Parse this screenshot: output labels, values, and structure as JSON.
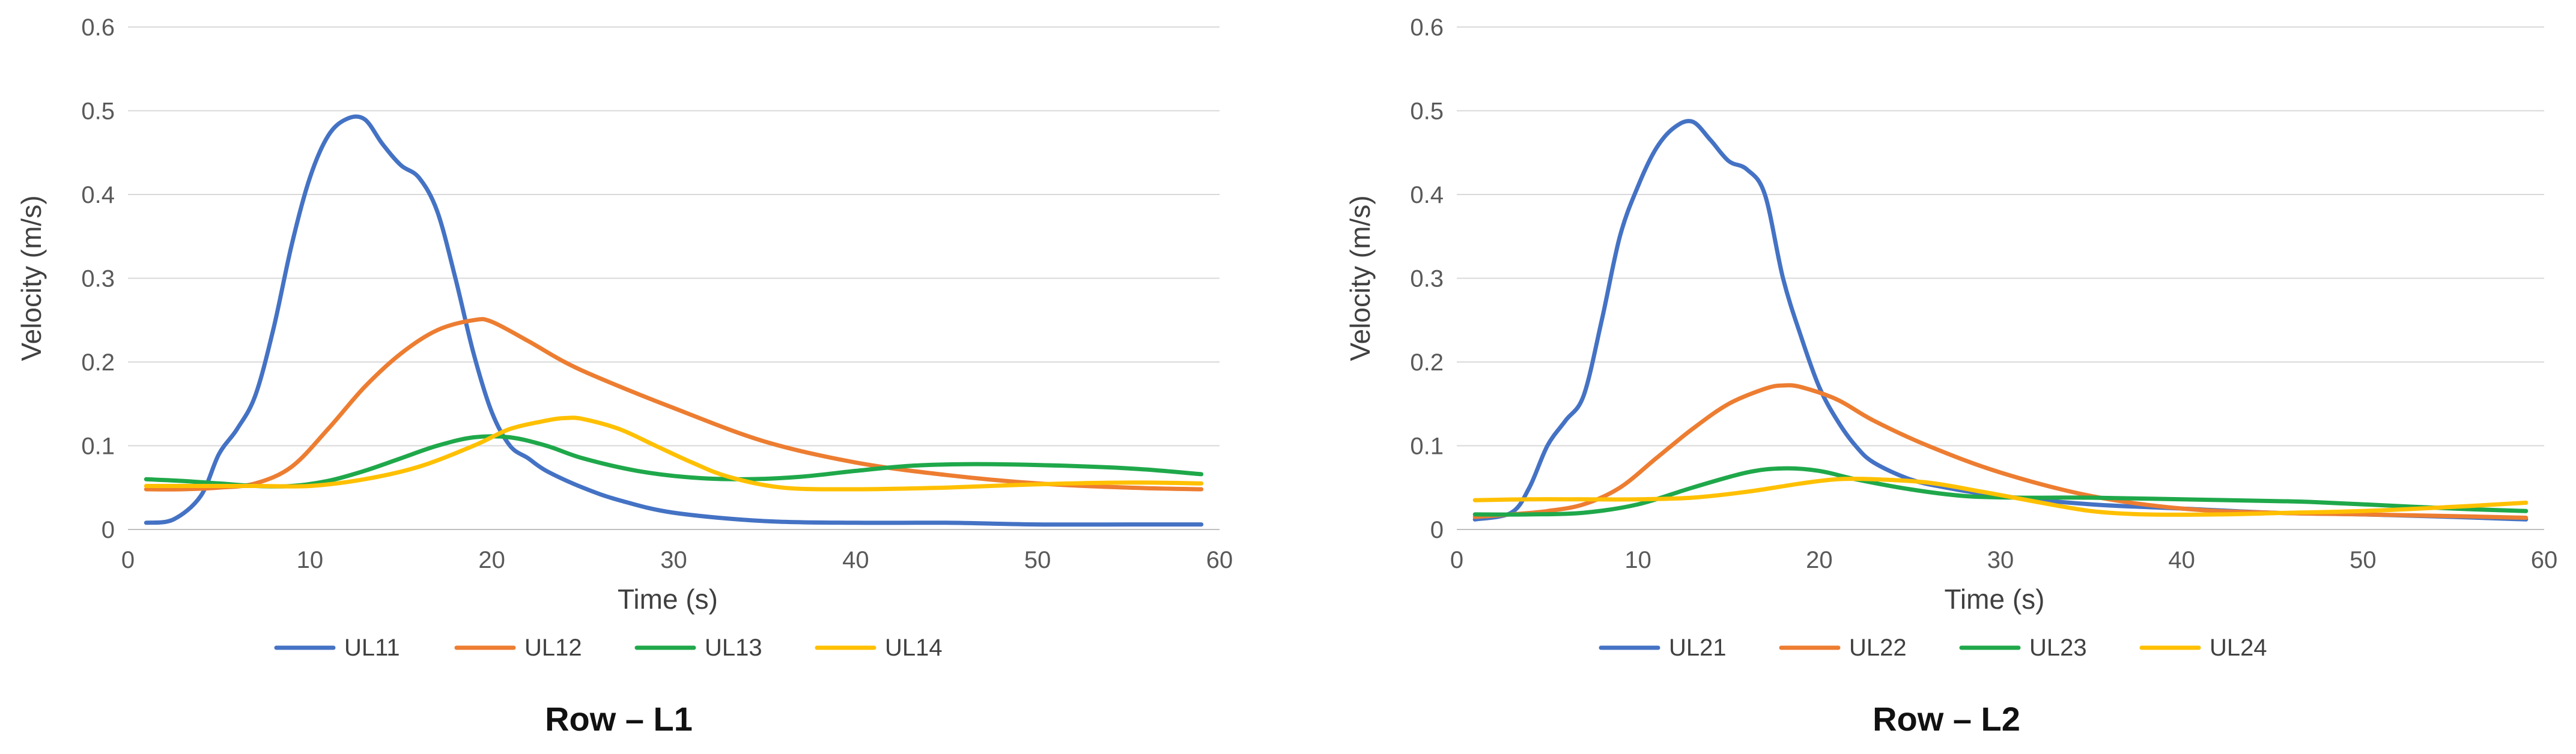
{
  "colors": {
    "blue": "#4472C4",
    "orange": "#ED7D31",
    "green": "#1FA84A",
    "yellow": "#FFC000",
    "grid": "#D9D9D9"
  },
  "chart_data": [
    {
      "type": "line",
      "caption": "Row – L1",
      "xlabel": "Time (s)",
      "ylabel": "Velocity (m/s)",
      "xlim": [
        0,
        60
      ],
      "ylim": [
        0,
        0.6
      ],
      "xticks": [
        0,
        10,
        20,
        30,
        40,
        50,
        60
      ],
      "yticks": [
        0,
        0.1,
        0.2,
        0.3,
        0.4,
        0.5,
        0.6
      ],
      "grid": true,
      "legend": "bottom",
      "series": [
        {
          "name": "UL11",
          "color": "#4472C4",
          "x": [
            1,
            2.5,
            4,
            5,
            6,
            7,
            8,
            9,
            10,
            11,
            12,
            13,
            14,
            15,
            16,
            17,
            18,
            19,
            20,
            21,
            22,
            23,
            25,
            27,
            30,
            35,
            40,
            45,
            50,
            55,
            59
          ],
          "y": [
            0.008,
            0.012,
            0.04,
            0.09,
            0.12,
            0.16,
            0.24,
            0.34,
            0.42,
            0.47,
            0.49,
            0.49,
            0.46,
            0.435,
            0.42,
            0.38,
            0.3,
            0.21,
            0.14,
            0.1,
            0.085,
            0.07,
            0.05,
            0.035,
            0.02,
            0.01,
            0.008,
            0.008,
            0.006,
            0.006,
            0.006
          ]
        },
        {
          "name": "UL12",
          "color": "#ED7D31",
          "x": [
            1,
            3,
            5,
            7,
            9,
            11,
            13,
            15,
            17,
            19,
            20,
            22,
            24,
            26,
            30,
            35,
            40,
            45,
            50,
            55,
            59
          ],
          "y": [
            0.048,
            0.048,
            0.05,
            0.055,
            0.075,
            0.12,
            0.17,
            0.21,
            0.238,
            0.25,
            0.248,
            0.225,
            0.2,
            0.18,
            0.145,
            0.105,
            0.08,
            0.065,
            0.055,
            0.05,
            0.048
          ]
        },
        {
          "name": "UL13",
          "color": "#1FA84A",
          "x": [
            1,
            3,
            5,
            7,
            9,
            11,
            13,
            15,
            17,
            19,
            21,
            23,
            25,
            28,
            31,
            34,
            37,
            40,
            43,
            46,
            50,
            55,
            59
          ],
          "y": [
            0.06,
            0.058,
            0.055,
            0.052,
            0.052,
            0.058,
            0.07,
            0.085,
            0.1,
            0.11,
            0.11,
            0.1,
            0.085,
            0.07,
            0.062,
            0.06,
            0.063,
            0.07,
            0.076,
            0.078,
            0.077,
            0.073,
            0.066
          ]
        },
        {
          "name": "UL14",
          "color": "#FFC000",
          "x": [
            1,
            4,
            7,
            10,
            13,
            16,
            19,
            21,
            23,
            24,
            25,
            27,
            29,
            31,
            33,
            36,
            40,
            45,
            50,
            55,
            59
          ],
          "y": [
            0.052,
            0.052,
            0.052,
            0.052,
            0.06,
            0.075,
            0.1,
            0.12,
            0.13,
            0.133,
            0.132,
            0.12,
            0.1,
            0.08,
            0.063,
            0.05,
            0.048,
            0.05,
            0.054,
            0.056,
            0.055
          ]
        }
      ]
    },
    {
      "type": "line",
      "caption": "Row – L2",
      "xlabel": "Time (s)",
      "ylabel": "Velocity (m/s)",
      "xlim": [
        0,
        60
      ],
      "ylim": [
        0,
        0.6
      ],
      "xticks": [
        0,
        10,
        20,
        30,
        40,
        50,
        60
      ],
      "yticks": [
        0,
        0.1,
        0.2,
        0.3,
        0.4,
        0.5,
        0.6
      ],
      "grid": true,
      "legend": "bottom",
      "series": [
        {
          "name": "UL21",
          "color": "#4472C4",
          "x": [
            1,
            3,
            4,
            5,
            6,
            7,
            8,
            9,
            10,
            11,
            12,
            13,
            14,
            15,
            16,
            17,
            18,
            19,
            20,
            21,
            22,
            23,
            25,
            27,
            30,
            35,
            40,
            45,
            50,
            55,
            59
          ],
          "y": [
            0.012,
            0.02,
            0.05,
            0.1,
            0.13,
            0.16,
            0.25,
            0.35,
            0.41,
            0.455,
            0.48,
            0.487,
            0.465,
            0.44,
            0.43,
            0.4,
            0.3,
            0.23,
            0.17,
            0.13,
            0.1,
            0.08,
            0.06,
            0.05,
            0.04,
            0.03,
            0.025,
            0.02,
            0.018,
            0.015,
            0.012
          ]
        },
        {
          "name": "UL22",
          "color": "#ED7D31",
          "x": [
            1,
            3,
            5,
            7,
            9,
            11,
            13,
            15,
            17,
            18,
            19,
            21,
            23,
            26,
            30,
            35,
            40,
            45,
            50,
            55,
            59
          ],
          "y": [
            0.015,
            0.018,
            0.022,
            0.03,
            0.05,
            0.085,
            0.12,
            0.15,
            0.168,
            0.172,
            0.17,
            0.155,
            0.13,
            0.1,
            0.068,
            0.04,
            0.025,
            0.02,
            0.018,
            0.016,
            0.014
          ]
        },
        {
          "name": "UL23",
          "color": "#1FA84A",
          "x": [
            1,
            4,
            7,
            10,
            13,
            16,
            18,
            20,
            22,
            25,
            28,
            31,
            35,
            40,
            45,
            47,
            50,
            55,
            59
          ],
          "y": [
            0.018,
            0.018,
            0.02,
            0.03,
            0.05,
            0.068,
            0.073,
            0.07,
            0.06,
            0.048,
            0.04,
            0.038,
            0.038,
            0.036,
            0.034,
            0.033,
            0.03,
            0.025,
            0.022
          ]
        },
        {
          "name": "UL24",
          "color": "#FFC000",
          "x": [
            1,
            4,
            7,
            10,
            13,
            16,
            19,
            21,
            23,
            26,
            29,
            32,
            35,
            38,
            42,
            46,
            50,
            55,
            59
          ],
          "y": [
            0.035,
            0.036,
            0.036,
            0.036,
            0.038,
            0.045,
            0.055,
            0.06,
            0.06,
            0.056,
            0.045,
            0.033,
            0.022,
            0.018,
            0.018,
            0.02,
            0.022,
            0.027,
            0.032
          ]
        }
      ]
    }
  ]
}
